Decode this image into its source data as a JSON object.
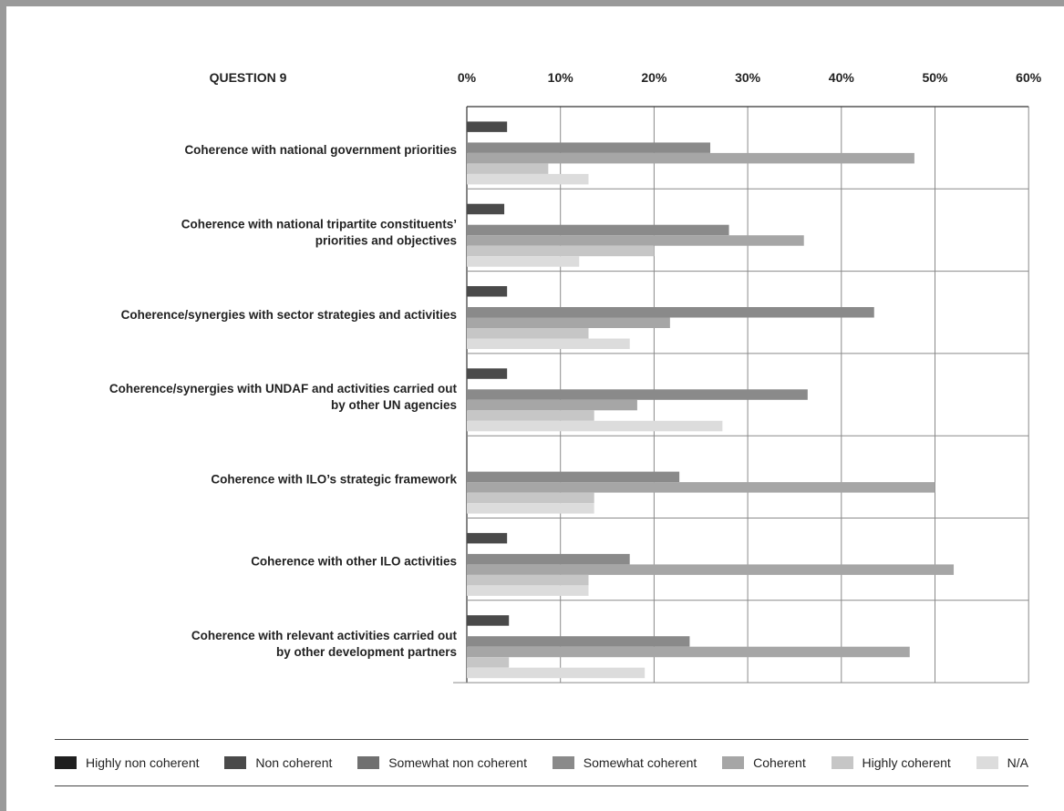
{
  "chart_data": {
    "type": "bar",
    "orientation": "horizontal",
    "title": "QUESTION 9",
    "x_axis": {
      "ticks": [
        "0%",
        "10%",
        "20%",
        "30%",
        "40%",
        "50%",
        "60%"
      ],
      "range": [
        0,
        60
      ],
      "position": "top"
    },
    "grid": true,
    "legend_position": "bottom",
    "categories": [
      [
        "Coherence with national government priorities"
      ],
      [
        "Coherence with national tripartite constituents’",
        "priorities and objectives"
      ],
      [
        "Coherence/synergies with sector strategies and activities"
      ],
      [
        "Coherence/synergies with UNDAF and activities carried out",
        "by other UN agencies"
      ],
      [
        "Coherence with ILO’s strategic framework"
      ],
      [
        "Coherence with other ILO activities"
      ],
      [
        "Coherence with relevant activities carried out",
        "by other development partners"
      ]
    ],
    "series": [
      {
        "name": "Highly non coherent",
        "color": "#1f1f1f",
        "values": [
          0,
          0,
          0,
          0,
          0,
          0,
          0
        ]
      },
      {
        "name": "Non coherent",
        "color": "#4a4a4a",
        "values": [
          4.3,
          4.0,
          4.3,
          4.3,
          0,
          4.3,
          4.5
        ]
      },
      {
        "name": "Somewhat non coherent",
        "color": "#707070",
        "values": [
          0,
          0,
          0,
          0,
          0,
          0,
          0
        ]
      },
      {
        "name": "Somewhat coherent",
        "color": "#8a8a8a",
        "values": [
          26.0,
          28.0,
          43.5,
          36.4,
          22.7,
          17.4,
          23.8
        ]
      },
      {
        "name": "Coherent",
        "color": "#a6a6a6",
        "values": [
          47.8,
          36.0,
          21.7,
          18.2,
          50.0,
          52.0,
          47.3
        ]
      },
      {
        "name": "Highly coherent",
        "color": "#c6c6c6",
        "values": [
          8.7,
          20.0,
          13.0,
          13.6,
          13.6,
          13.0,
          4.5
        ]
      },
      {
        "name": "N/A",
        "color": "#dcdcdc",
        "values": [
          13.0,
          12.0,
          17.4,
          27.3,
          13.6,
          13.0,
          19.0
        ]
      }
    ]
  }
}
